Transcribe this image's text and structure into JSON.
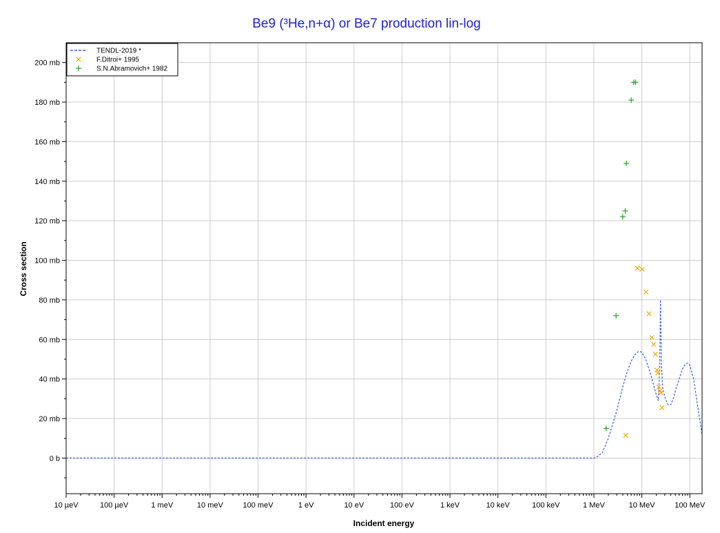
{
  "chart_data": {
    "type": "scatter",
    "title": "Be9 (³He,n+α) or Be7 production lin-log",
    "xlabel": "Incident energy",
    "ylabel": "Cross section",
    "x_scale": "log",
    "x_unit": "eV",
    "xlim": [
      1e-05,
      180000000
    ],
    "ylim": [
      -18,
      210
    ],
    "grid": true,
    "legend_position": "top-left",
    "x_ticks": [
      {
        "value": 1e-05,
        "label": "10 µeV"
      },
      {
        "value": 0.0001,
        "label": "100 µeV"
      },
      {
        "value": 0.001,
        "label": "1 meV"
      },
      {
        "value": 0.01,
        "label": "10 meV"
      },
      {
        "value": 0.1,
        "label": "100 meV"
      },
      {
        "value": 1,
        "label": "1 eV"
      },
      {
        "value": 10,
        "label": "10 eV"
      },
      {
        "value": 100,
        "label": "100 eV"
      },
      {
        "value": 1000,
        "label": "1 keV"
      },
      {
        "value": 10000,
        "label": "10 keV"
      },
      {
        "value": 100000,
        "label": "100 keV"
      },
      {
        "value": 1000000,
        "label": "1 MeV"
      },
      {
        "value": 10000000,
        "label": "10 MeV"
      },
      {
        "value": 100000000,
        "label": "100 MeV"
      }
    ],
    "y_ticks": [
      {
        "value": 0,
        "label": "0 b"
      },
      {
        "value": 20,
        "label": "20 mb"
      },
      {
        "value": 40,
        "label": "40 mb"
      },
      {
        "value": 60,
        "label": "60 mb"
      },
      {
        "value": 80,
        "label": "80 mb"
      },
      {
        "value": 100,
        "label": "100 mb"
      },
      {
        "value": 120,
        "label": "120 mb"
      },
      {
        "value": 140,
        "label": "140 mb"
      },
      {
        "value": 160,
        "label": "160 mb"
      },
      {
        "value": 180,
        "label": "180 mb"
      },
      {
        "value": 200,
        "label": "200 mb"
      }
    ],
    "series": [
      {
        "name": "TENDL-2019 *",
        "kind": "line",
        "style": "dashed",
        "color": "#3b5fd9",
        "points": [
          [
            1e-05,
            0
          ],
          [
            1000000,
            0
          ],
          [
            1200000,
            0.8
          ],
          [
            1500000,
            2.8
          ],
          [
            2000000,
            10
          ],
          [
            3000000,
            24
          ],
          [
            4000000,
            36
          ],
          [
            5000000,
            44
          ],
          [
            6000000,
            49
          ],
          [
            7000000,
            52
          ],
          [
            8000000,
            53.5
          ],
          [
            9000000,
            54
          ],
          [
            10000000,
            53.5
          ],
          [
            12000000,
            50
          ],
          [
            15000000,
            43
          ],
          [
            18000000,
            36
          ],
          [
            20000000,
            32
          ],
          [
            22000000,
            29
          ],
          [
            23500000,
            45
          ],
          [
            24500000,
            80
          ],
          [
            25500000,
            48
          ],
          [
            27000000,
            36
          ],
          [
            30000000,
            31
          ],
          [
            35000000,
            27
          ],
          [
            40000000,
            27
          ],
          [
            45000000,
            30
          ],
          [
            50000000,
            34
          ],
          [
            60000000,
            40
          ],
          [
            70000000,
            45
          ],
          [
            80000000,
            47.5
          ],
          [
            90000000,
            48
          ],
          [
            100000000,
            47
          ],
          [
            120000000,
            40
          ],
          [
            150000000,
            24
          ],
          [
            180000000,
            12
          ]
        ]
      },
      {
        "name": "F.Ditroi+ 1995",
        "kind": "scatter",
        "marker": "x",
        "color": "#f0a500",
        "points": [
          [
            4600000,
            11.5
          ],
          [
            8100000,
            96
          ],
          [
            10100000,
            95.5
          ],
          [
            12100000,
            84
          ],
          [
            14100000,
            73
          ],
          [
            16100000,
            61
          ],
          [
            17600000,
            57.5
          ],
          [
            19100000,
            52.5
          ],
          [
            20600000,
            44.5
          ],
          [
            21600000,
            43
          ],
          [
            22600000,
            36
          ],
          [
            24100000,
            34
          ],
          [
            25100000,
            33
          ],
          [
            26100000,
            25.5
          ]
        ]
      },
      {
        "name": "S.N.Abramovich+ 1982",
        "kind": "scatter",
        "marker": "+",
        "color": "#22a022",
        "points": [
          [
            1800000,
            15
          ],
          [
            2900000,
            72
          ],
          [
            4000000,
            122
          ],
          [
            4500000,
            125
          ],
          [
            4750000,
            149
          ],
          [
            6000000,
            181
          ],
          [
            6800000,
            190
          ],
          [
            7400000,
            190
          ]
        ]
      }
    ]
  }
}
